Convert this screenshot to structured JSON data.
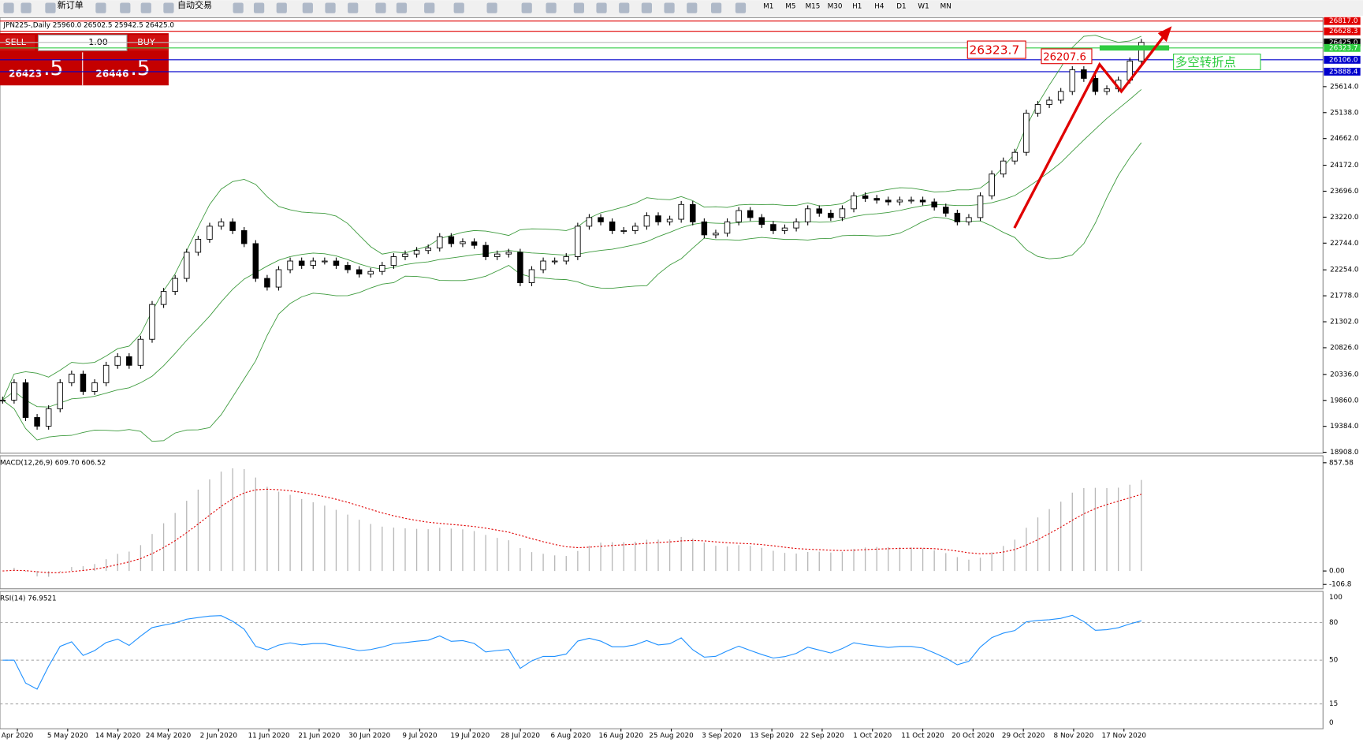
{
  "toolbar": {
    "new_order": "新订单",
    "auto_trading": "自动交易",
    "timeframes": [
      "M1",
      "M5",
      "M15",
      "M30",
      "H1",
      "H4",
      "D1",
      "W1",
      "MN"
    ]
  },
  "symbol_bar": "JPN225-,Daily  25960.0 26502.5 25942.5 26425.0",
  "trade_panel": {
    "sell": "SELL",
    "buy": "BUY",
    "lots": "1.00",
    "bid_big": "26423",
    "bid_small": ".5",
    "ask_big": "26446",
    "ask_small": ".5"
  },
  "price_chart": {
    "closes": [
      19865,
      20184,
      19546,
      19387,
      19706,
      20184,
      20343,
      20024,
      20184,
      20503,
      20662,
      20503,
      20981,
      21619,
      21858,
      22097,
      22576,
      22815,
      23054,
      23134,
      22974,
      22735,
      22097,
      21938,
      22257,
      22416,
      22336,
      22416,
      22416,
      22336,
      22257,
      22177,
      22225,
      22336,
      22496,
      22544,
      22608,
      22655,
      22863,
      22735,
      22767,
      22703,
      22496,
      22544,
      22576,
      22018,
      22257,
      22416,
      22416,
      22496,
      23054,
      23213,
      23134,
      22974,
      22974,
      23054,
      23245,
      23134,
      23182,
      23453,
      23134,
      22895,
      22926,
      23134,
      23341,
      23213,
      23086,
      22974,
      23022,
      23134,
      23373,
      23293,
      23213,
      23373,
      23612,
      23564,
      23532,
      23500,
      23532,
      23532,
      23500,
      23405,
      23293,
      23134,
      23213,
      23612,
      24011,
      24250,
      24409,
      25127,
      25286,
      25366,
      25525,
      25924,
      25765,
      25525,
      25573,
      25733,
      26084,
      26425
    ],
    "ylim": [
      18908.0,
      26817.0
    ],
    "yticks": [
      {
        "value": 25614.0,
        "label": "25614.0"
      },
      {
        "value": 25138.0,
        "label": "25138.0"
      },
      {
        "value": 24662.0,
        "label": "24662.0"
      },
      {
        "value": 24172.0,
        "label": "24172.0"
      },
      {
        "value": 23696.0,
        "label": "23696.0"
      },
      {
        "value": 23220.0,
        "label": "23220.0"
      },
      {
        "value": 22744.0,
        "label": "22744.0"
      },
      {
        "value": 22254.0,
        "label": "22254.0"
      },
      {
        "value": 21778.0,
        "label": "21778.0"
      },
      {
        "value": 21302.0,
        "label": "21302.0"
      },
      {
        "value": 20826.0,
        "label": "20826.0"
      },
      {
        "value": 20336.0,
        "label": "20336.0"
      },
      {
        "value": 19860.0,
        "label": "19860.0"
      },
      {
        "value": 19384.0,
        "label": "19384.0"
      },
      {
        "value": 18908.0,
        "label": "18908.0"
      }
    ],
    "levels": [
      {
        "value": 26817.0,
        "label": "26817.0",
        "color": "#e00000"
      },
      {
        "value": 26628.3,
        "label": "26628.3",
        "color": "#e00000"
      },
      {
        "value": 26425.0,
        "label": "26425.0",
        "color": "#000000"
      },
      {
        "value": 26323.7,
        "label": "26323.7",
        "color": "#2ecc40"
      },
      {
        "value": 26106.0,
        "label": "26106.0",
        "color": "#0000cc"
      },
      {
        "value": 25888.4,
        "label": "25888.4",
        "color": "#0000cc"
      }
    ],
    "annotations": [
      {
        "text": "26323.7",
        "color": "#e00000"
      },
      {
        "text": "26207.6",
        "color": "#e00000"
      },
      {
        "text": "多空转折点",
        "color": "#2ecc40"
      }
    ]
  },
  "macd": {
    "label": "MACD(12,26,9) 609.70 606.52",
    "ylim": [
      -106.8,
      857.58
    ],
    "yticks": [
      857.58,
      {
        "value": 0,
        "label": "0.00"
      },
      -106.8
    ]
  },
  "rsi": {
    "label": "RSI(14) 76.9521",
    "ylim": [
      0,
      100
    ],
    "yticks": [
      100,
      80,
      50,
      15,
      0
    ]
  },
  "dates": [
    "Apr 2020",
    "5 May 2020",
    "14 May 2020",
    "24 May 2020",
    "2 Jun 2020",
    "11 Jun 2020",
    "21 Jun 2020",
    "30 Jun 2020",
    "9 Jul 2020",
    "19 Jul 2020",
    "28 Jul 2020",
    "6 Aug 2020",
    "16 Aug 2020",
    "25 Aug 2020",
    "3 Sep 2020",
    "13 Sep 2020",
    "22 Sep 2020",
    "1 Oct 2020",
    "11 Oct 2020",
    "20 Oct 2020",
    "29 Oct 2020",
    "8 Nov 2020",
    "17 Nov 2020"
  ]
}
